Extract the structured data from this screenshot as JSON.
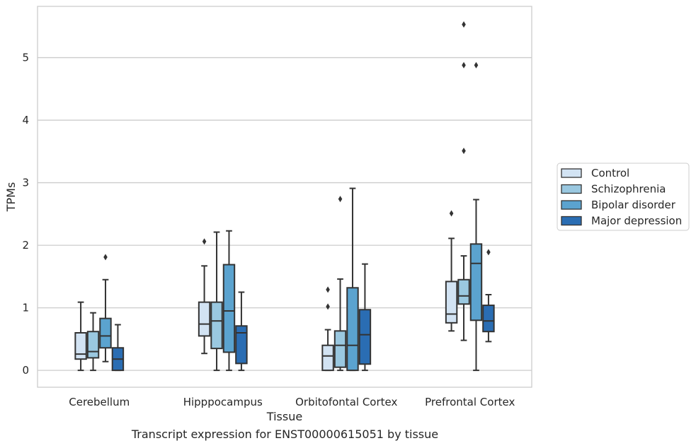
{
  "caption": "Transcript expression for ENST00000615051 by tissue",
  "chart_data": {
    "type": "box",
    "xlabel": "Tissue",
    "ylabel": "TPMs",
    "ylim": [
      -0.27,
      5.82
    ],
    "yticks": [
      0,
      1,
      2,
      3,
      4,
      5
    ],
    "grid": "horizontal",
    "legend_position": "right",
    "categories": [
      "Cerebellum",
      "Hipppocampus",
      "Orbitofontal Cortex",
      "Prefrontal Cortex"
    ],
    "series": [
      {
        "name": "Control",
        "color": "#d2e3f3",
        "boxes": [
          {
            "whislo": 0.0,
            "q1": 0.18,
            "median": 0.26,
            "q3": 0.6,
            "whishi": 1.09,
            "fliers": []
          },
          {
            "whislo": 0.27,
            "q1": 0.55,
            "median": 0.74,
            "q3": 1.09,
            "whishi": 1.67,
            "fliers": [
              2.06
            ]
          },
          {
            "whislo": 0.0,
            "q1": 0.0,
            "median": 0.23,
            "q3": 0.4,
            "whishi": 0.65,
            "fliers": [
              1.02,
              1.29
            ]
          },
          {
            "whislo": 0.63,
            "q1": 0.76,
            "median": 0.9,
            "q3": 1.42,
            "whishi": 2.11,
            "fliers": [
              2.51
            ]
          }
        ]
      },
      {
        "name": "Schizophrenia",
        "color": "#9ac8e0",
        "boxes": [
          {
            "whislo": 0.0,
            "q1": 0.2,
            "median": 0.3,
            "q3": 0.62,
            "whishi": 0.92,
            "fliers": []
          },
          {
            "whislo": 0.0,
            "q1": 0.35,
            "median": 0.79,
            "q3": 1.09,
            "whishi": 2.21,
            "fliers": []
          },
          {
            "whislo": 0.0,
            "q1": 0.05,
            "median": 0.4,
            "q3": 0.63,
            "whishi": 1.46,
            "fliers": [
              2.74
            ]
          },
          {
            "whislo": 0.48,
            "q1": 1.06,
            "median": 1.19,
            "q3": 1.45,
            "whishi": 1.83,
            "fliers": [
              3.51,
              4.88,
              5.53
            ]
          }
        ]
      },
      {
        "name": "Bipolar disorder",
        "color": "#5ba3cf",
        "boxes": [
          {
            "whislo": 0.14,
            "q1": 0.36,
            "median": 0.55,
            "q3": 0.83,
            "whishi": 1.45,
            "fliers": [
              1.81
            ]
          },
          {
            "whislo": 0.0,
            "q1": 0.29,
            "median": 0.95,
            "q3": 1.69,
            "whishi": 2.23,
            "fliers": []
          },
          {
            "whislo": 0.0,
            "q1": 0.0,
            "median": 0.4,
            "q3": 1.32,
            "whishi": 2.91,
            "fliers": []
          },
          {
            "whislo": 0.0,
            "q1": 0.8,
            "median": 1.71,
            "q3": 2.02,
            "whishi": 2.73,
            "fliers": [
              4.88
            ]
          }
        ]
      },
      {
        "name": "Major depression",
        "color": "#2a6db3",
        "boxes": [
          {
            "whislo": 0.0,
            "q1": 0.0,
            "median": 0.18,
            "q3": 0.36,
            "whishi": 0.73,
            "fliers": []
          },
          {
            "whislo": 0.0,
            "q1": 0.11,
            "median": 0.6,
            "q3": 0.71,
            "whishi": 1.25,
            "fliers": []
          },
          {
            "whislo": 0.0,
            "q1": 0.1,
            "median": 0.57,
            "q3": 0.97,
            "whishi": 1.7,
            "fliers": []
          },
          {
            "whislo": 0.46,
            "q1": 0.62,
            "median": 0.79,
            "q3": 1.04,
            "whishi": 1.21,
            "fliers": [
              1.89
            ]
          }
        ]
      }
    ]
  }
}
